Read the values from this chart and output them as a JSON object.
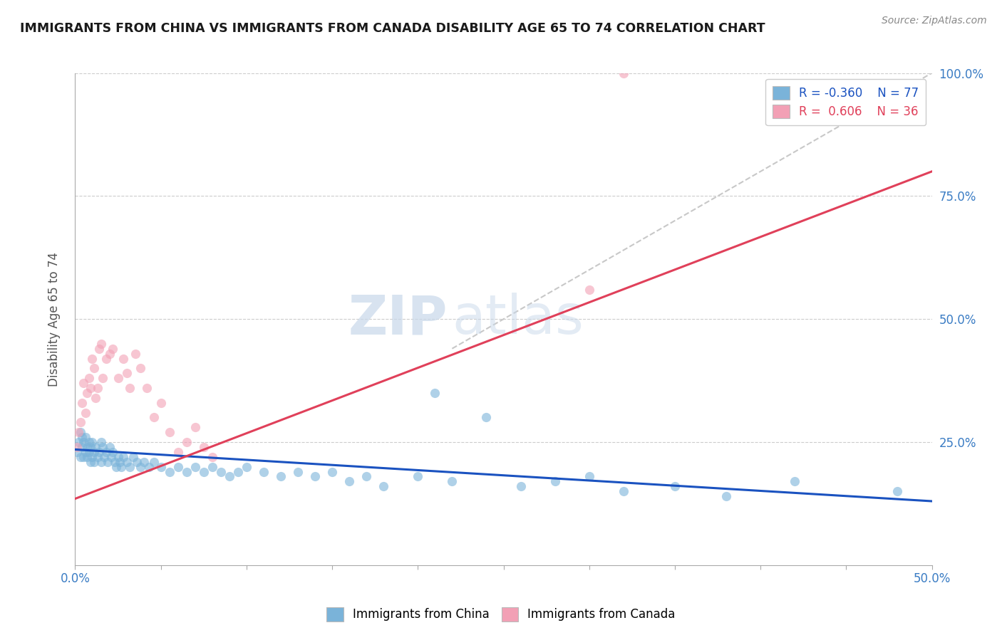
{
  "title": "IMMIGRANTS FROM CHINA VS IMMIGRANTS FROM CANADA DISABILITY AGE 65 TO 74 CORRELATION CHART",
  "source_text": "Source: ZipAtlas.com",
  "ylabel": "Disability Age 65 to 74",
  "xmin": 0.0,
  "xmax": 0.5,
  "ymin": 0.0,
  "ymax": 1.0,
  "china_color": "#7ab3d9",
  "canada_color": "#f2a0b5",
  "china_line_color": "#1a52c0",
  "canada_line_color": "#e0405a",
  "ref_line_color": "#c8c8c8",
  "watermark_zip": "ZIP",
  "watermark_atlas": "atlas",
  "legend_china_R": "-0.360",
  "legend_china_N": "77",
  "legend_canada_R": "0.606",
  "legend_canada_N": "36",
  "china_scatter_x": [
    0.001,
    0.002,
    0.003,
    0.003,
    0.004,
    0.004,
    0.005,
    0.005,
    0.006,
    0.006,
    0.007,
    0.007,
    0.008,
    0.008,
    0.009,
    0.009,
    0.01,
    0.01,
    0.011,
    0.011,
    0.012,
    0.013,
    0.014,
    0.015,
    0.015,
    0.016,
    0.017,
    0.018,
    0.019,
    0.02,
    0.021,
    0.022,
    0.023,
    0.024,
    0.025,
    0.026,
    0.027,
    0.028,
    0.03,
    0.032,
    0.034,
    0.036,
    0.038,
    0.04,
    0.043,
    0.046,
    0.05,
    0.055,
    0.06,
    0.065,
    0.07,
    0.075,
    0.08,
    0.085,
    0.09,
    0.095,
    0.1,
    0.11,
    0.12,
    0.13,
    0.14,
    0.15,
    0.16,
    0.17,
    0.18,
    0.2,
    0.21,
    0.22,
    0.24,
    0.26,
    0.28,
    0.3,
    0.32,
    0.35,
    0.38,
    0.42,
    0.48
  ],
  "china_scatter_y": [
    0.23,
    0.25,
    0.22,
    0.27,
    0.24,
    0.26,
    0.22,
    0.25,
    0.23,
    0.26,
    0.24,
    0.22,
    0.23,
    0.25,
    0.21,
    0.24,
    0.22,
    0.25,
    0.23,
    0.21,
    0.24,
    0.22,
    0.23,
    0.25,
    0.21,
    0.24,
    0.22,
    0.23,
    0.21,
    0.24,
    0.22,
    0.23,
    0.21,
    0.2,
    0.22,
    0.21,
    0.2,
    0.22,
    0.21,
    0.2,
    0.22,
    0.21,
    0.2,
    0.21,
    0.2,
    0.21,
    0.2,
    0.19,
    0.2,
    0.19,
    0.2,
    0.19,
    0.2,
    0.19,
    0.18,
    0.19,
    0.2,
    0.19,
    0.18,
    0.19,
    0.18,
    0.19,
    0.17,
    0.18,
    0.16,
    0.18,
    0.35,
    0.17,
    0.3,
    0.16,
    0.17,
    0.18,
    0.15,
    0.16,
    0.14,
    0.17,
    0.15
  ],
  "canada_scatter_x": [
    0.001,
    0.002,
    0.003,
    0.004,
    0.005,
    0.006,
    0.007,
    0.008,
    0.009,
    0.01,
    0.011,
    0.012,
    0.013,
    0.014,
    0.015,
    0.016,
    0.018,
    0.02,
    0.022,
    0.025,
    0.028,
    0.03,
    0.032,
    0.035,
    0.038,
    0.042,
    0.046,
    0.05,
    0.055,
    0.06,
    0.065,
    0.07,
    0.075,
    0.08,
    0.3,
    0.32
  ],
  "canada_scatter_y": [
    0.24,
    0.27,
    0.29,
    0.33,
    0.37,
    0.31,
    0.35,
    0.38,
    0.36,
    0.42,
    0.4,
    0.34,
    0.36,
    0.44,
    0.45,
    0.38,
    0.42,
    0.43,
    0.44,
    0.38,
    0.42,
    0.39,
    0.36,
    0.43,
    0.4,
    0.36,
    0.3,
    0.33,
    0.27,
    0.23,
    0.25,
    0.28,
    0.24,
    0.22,
    0.56,
    1.0
  ],
  "china_line_x": [
    0.0,
    0.5
  ],
  "china_line_y": [
    0.235,
    0.13
  ],
  "canada_line_x": [
    0.0,
    0.5
  ],
  "canada_line_y": [
    0.135,
    0.8
  ],
  "ref_line_x": [
    0.22,
    0.5
  ],
  "ref_line_y": [
    0.44,
    1.0
  ]
}
